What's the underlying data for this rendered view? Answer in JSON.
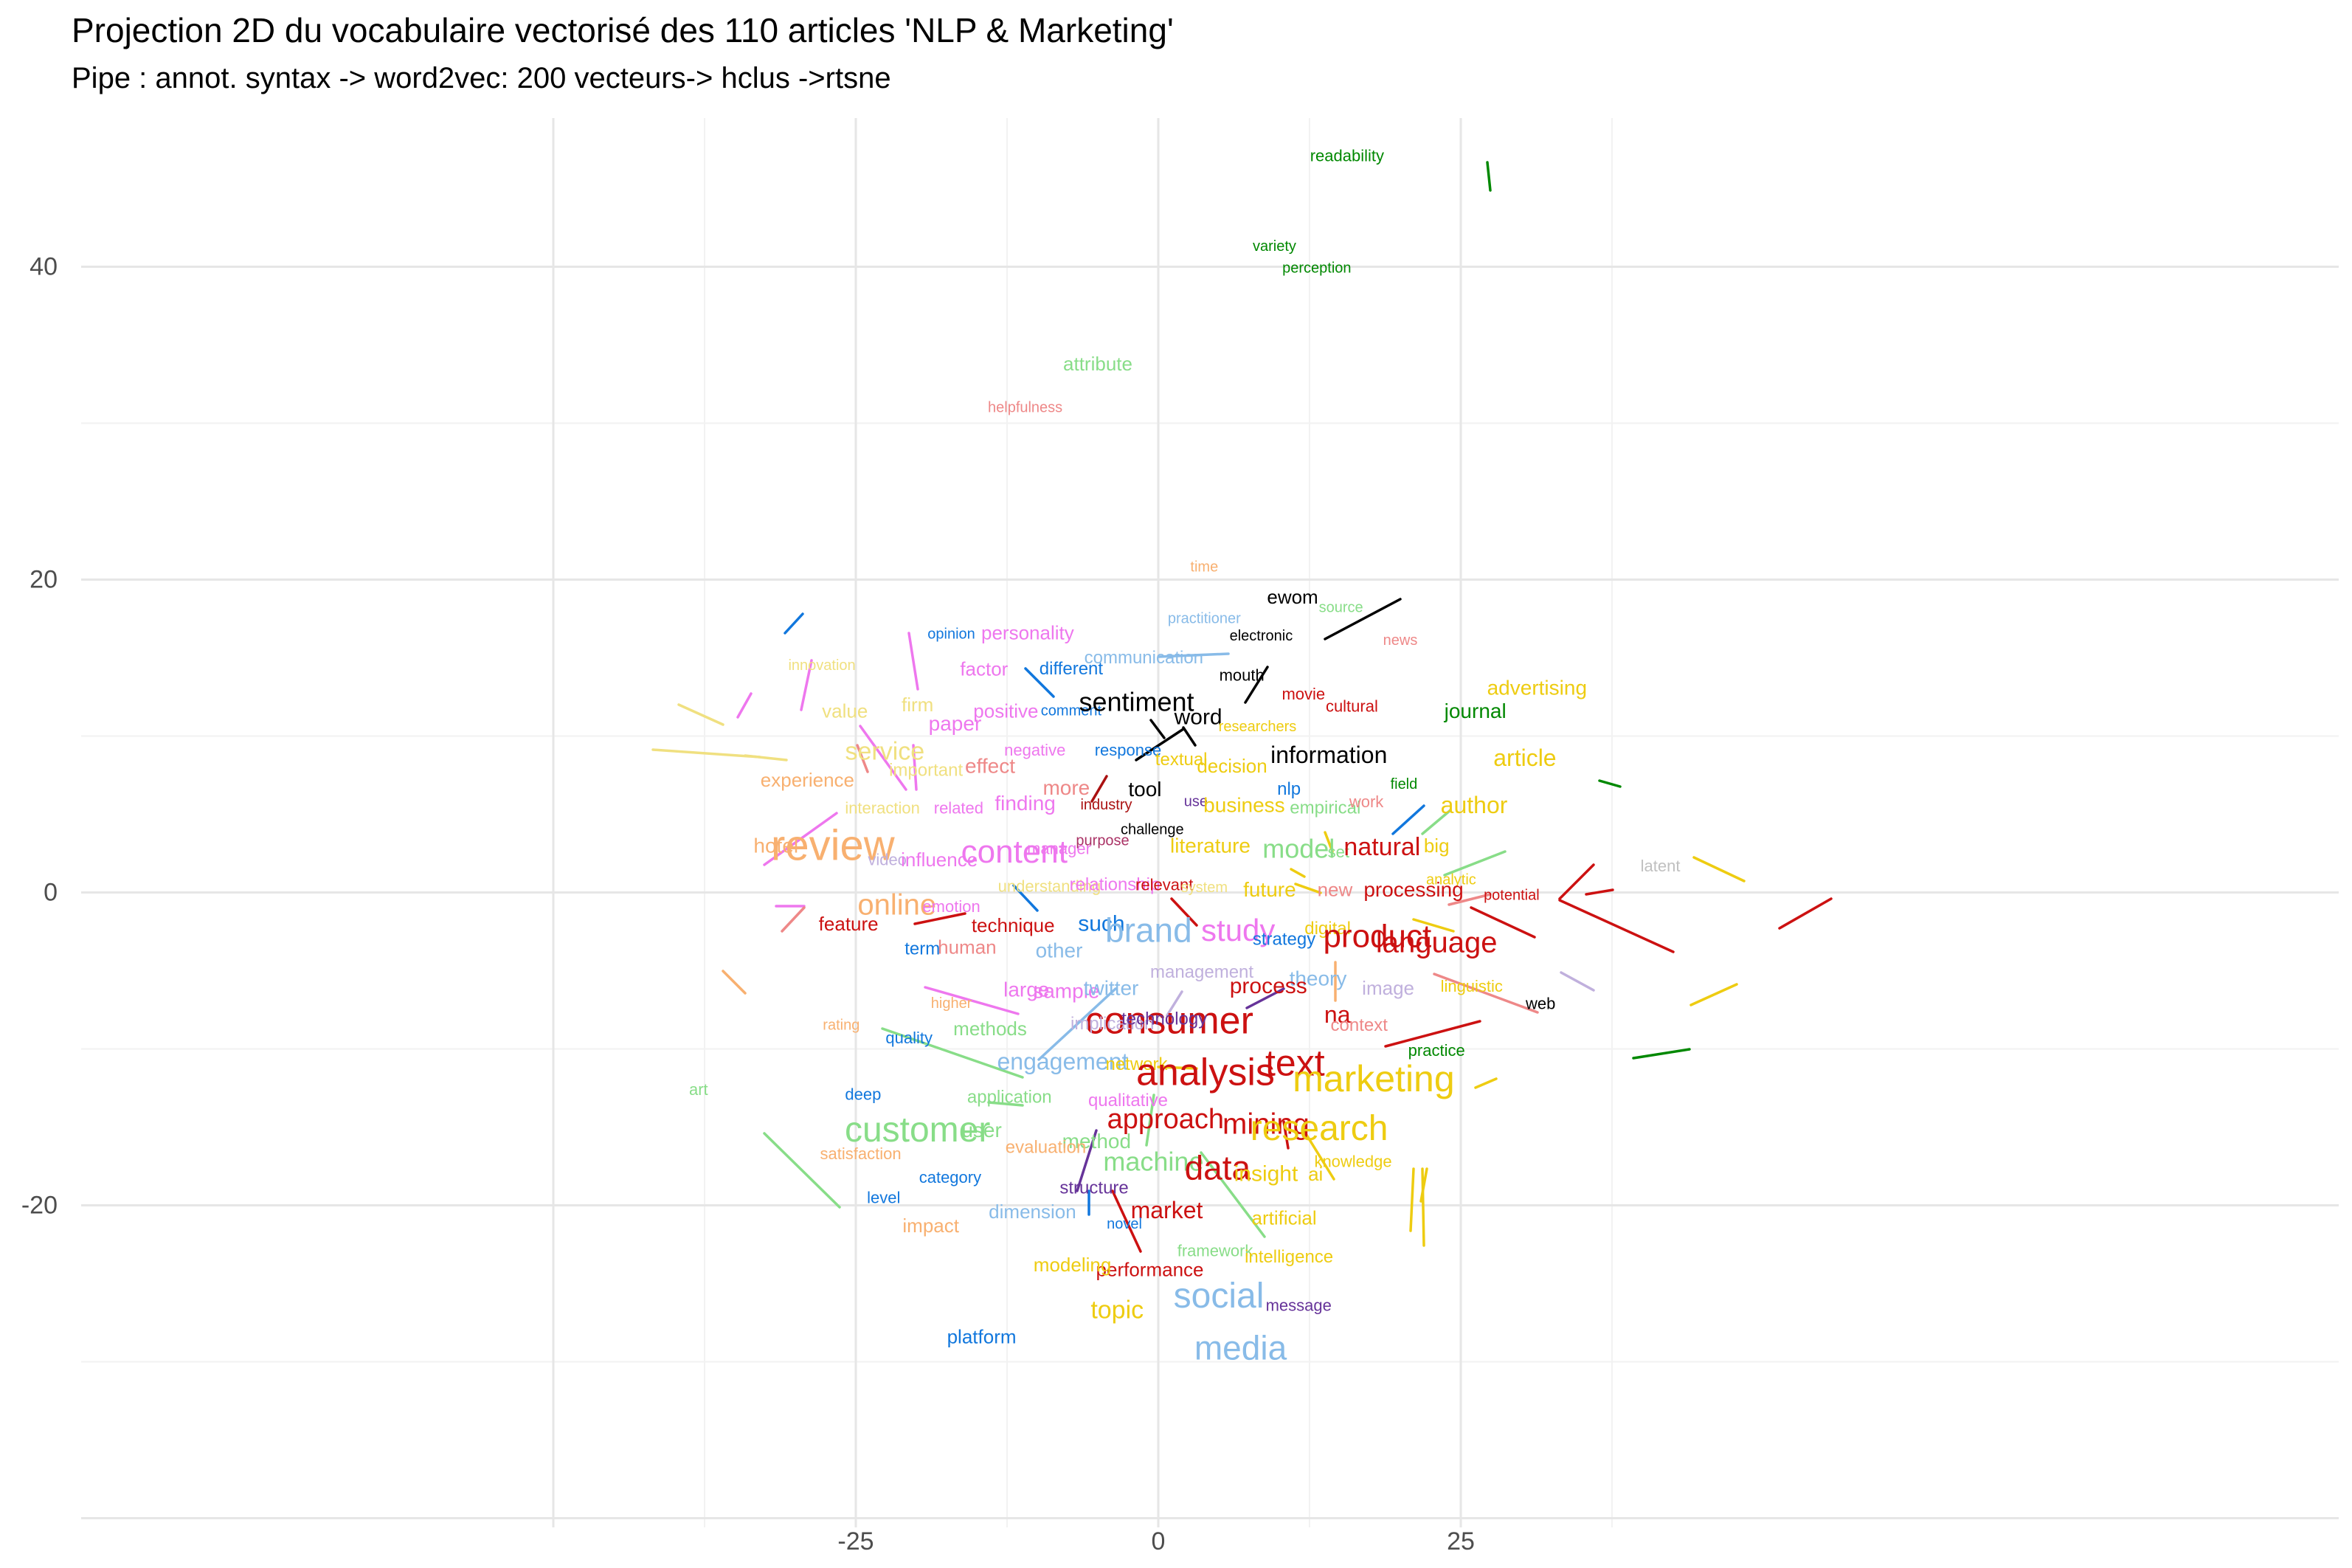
{
  "chart_data": {
    "type": "scatter",
    "title": "Projection 2D du vocabulaire vectorisé des 110 articles 'NLP & Marketing'",
    "subtitle": "Pipe : annot. syntax -> word2vec: 200 vecteurs-> hclus ->rtsne",
    "xlabel": "",
    "ylabel": "",
    "xlim": [
      -37.5,
      48
    ],
    "ylim": [
      -40.5,
      50.5
    ],
    "x_ticks": [
      -25,
      0,
      25
    ],
    "x_tick_labels": [
      "-25",
      "0",
      "25"
    ],
    "y_ticks": [
      -20,
      0,
      20,
      40
    ],
    "y_tick_labels": [
      "-20",
      "0",
      "20",
      "40"
    ],
    "grid": true,
    "legend": "none",
    "words": [
      {
        "label": "readability",
        "x": 15.6,
        "y": 47.1,
        "color": "#008800",
        "size": 22
      },
      {
        "label": "variety",
        "x": 9.6,
        "y": 41.3,
        "color": "#008800",
        "size": 20
      },
      {
        "label": "perception",
        "x": 13.1,
        "y": 39.9,
        "color": "#008800",
        "size": 20
      },
      {
        "label": "attribute",
        "x": -5.0,
        "y": 33.8,
        "color": "#88dd88",
        "size": 26
      },
      {
        "label": "helpfulness",
        "x": -11.0,
        "y": 31.0,
        "color": "#ee8888",
        "size": 20
      },
      {
        "label": "time",
        "x": 3.8,
        "y": 20.8,
        "color": "#f8b070",
        "size": 20
      },
      {
        "label": "ewom",
        "x": 11.1,
        "y": 18.9,
        "color": "#000000",
        "size": 26
      },
      {
        "label": "source",
        "x": 15.1,
        "y": 18.2,
        "color": "#88dd88",
        "size": 20
      },
      {
        "label": "practitioner",
        "x": 3.8,
        "y": 17.5,
        "color": "#88bbe8",
        "size": 20
      },
      {
        "label": "electronic",
        "x": 8.5,
        "y": 16.4,
        "color": "#000000",
        "size": 20
      },
      {
        "label": "opinion",
        "x": -17.1,
        "y": 16.5,
        "color": "#1177dd",
        "size": 20
      },
      {
        "label": "personality",
        "x": -10.8,
        "y": 16.6,
        "color": "#ee77ee",
        "size": 26
      },
      {
        "label": "news",
        "x": 20.0,
        "y": 16.1,
        "color": "#ee8888",
        "size": 20
      },
      {
        "label": "innovation",
        "x": -27.8,
        "y": 14.5,
        "color": "#f0e080",
        "size": 20
      },
      {
        "label": "factor",
        "x": -14.4,
        "y": 14.3,
        "color": "#ee77ee",
        "size": 26
      },
      {
        "label": "different",
        "x": -7.2,
        "y": 14.3,
        "color": "#1177dd",
        "size": 24
      },
      {
        "label": "communication",
        "x": -1.2,
        "y": 15.0,
        "color": "#88bbe8",
        "size": 24
      },
      {
        "label": "mouth",
        "x": 6.9,
        "y": 13.9,
        "color": "#000000",
        "size": 22
      },
      {
        "label": "movie",
        "x": 12.0,
        "y": 12.7,
        "color": "#cc1111",
        "size": 22
      },
      {
        "label": "cultural",
        "x": 16.0,
        "y": 11.9,
        "color": "#cc1111",
        "size": 22
      },
      {
        "label": "value",
        "x": -25.9,
        "y": 11.6,
        "color": "#f0e080",
        "size": 26
      },
      {
        "label": "firm",
        "x": -19.9,
        "y": 12.0,
        "color": "#f0e080",
        "size": 26
      },
      {
        "label": "positive",
        "x": -12.6,
        "y": 11.6,
        "color": "#ee77ee",
        "size": 26
      },
      {
        "label": "comment",
        "x": -7.2,
        "y": 11.6,
        "color": "#1177dd",
        "size": 20
      },
      {
        "label": "sentiment",
        "x": -1.8,
        "y": 12.2,
        "color": "#000000",
        "size": 36
      },
      {
        "label": "word",
        "x": 3.3,
        "y": 11.2,
        "color": "#000000",
        "size": 30
      },
      {
        "label": "journal",
        "x": 26.2,
        "y": 11.6,
        "color": "#008800",
        "size": 28
      },
      {
        "label": "advertising",
        "x": 31.3,
        "y": 13.1,
        "color": "#eecc11",
        "size": 28
      },
      {
        "label": "paper",
        "x": -16.8,
        "y": 10.8,
        "color": "#ee77ee",
        "size": 28
      },
      {
        "label": "researchers",
        "x": 8.2,
        "y": 10.6,
        "color": "#eecc11",
        "size": 20
      },
      {
        "label": "service",
        "x": -22.6,
        "y": 9.0,
        "color": "#f0e080",
        "size": 34
      },
      {
        "label": "negative",
        "x": -10.2,
        "y": 9.1,
        "color": "#ee77ee",
        "size": 22
      },
      {
        "label": "response",
        "x": -2.5,
        "y": 9.1,
        "color": "#1177dd",
        "size": 22
      },
      {
        "label": "information",
        "x": 14.1,
        "y": 8.8,
        "color": "#000000",
        "size": 32
      },
      {
        "label": "article",
        "x": 30.3,
        "y": 8.6,
        "color": "#eecc11",
        "size": 32
      },
      {
        "label": "important",
        "x": -19.2,
        "y": 7.8,
        "color": "#f0e080",
        "size": 24
      },
      {
        "label": "effect",
        "x": -13.9,
        "y": 8.1,
        "color": "#ee8888",
        "size": 28
      },
      {
        "label": "textual",
        "x": 1.9,
        "y": 8.5,
        "color": "#eecc11",
        "size": 24
      },
      {
        "label": "decision",
        "x": 6.1,
        "y": 8.1,
        "color": "#eecc11",
        "size": 26
      },
      {
        "label": "field",
        "x": 20.3,
        "y": 6.9,
        "color": "#008800",
        "size": 20
      },
      {
        "label": "experience",
        "x": -29.0,
        "y": 7.2,
        "color": "#f8b070",
        "size": 26
      },
      {
        "label": "more",
        "x": -7.6,
        "y": 6.7,
        "color": "#ee8888",
        "size": 28
      },
      {
        "label": "tool",
        "x": -1.1,
        "y": 6.6,
        "color": "#000000",
        "size": 28
      },
      {
        "label": "use",
        "x": 3.1,
        "y": 5.8,
        "color": "#663399",
        "size": 20
      },
      {
        "label": "nlp",
        "x": 10.8,
        "y": 6.6,
        "color": "#1177dd",
        "size": 24
      },
      {
        "label": "industry",
        "x": -4.3,
        "y": 5.6,
        "color": "#aa1111",
        "size": 20
      },
      {
        "label": "finding",
        "x": -11.0,
        "y": 5.7,
        "color": "#ee77ee",
        "size": 28
      },
      {
        "label": "interaction",
        "x": -22.8,
        "y": 5.4,
        "color": "#f0e080",
        "size": 22
      },
      {
        "label": "related",
        "x": -16.5,
        "y": 5.4,
        "color": "#ee77ee",
        "size": 22
      },
      {
        "label": "business",
        "x": 7.1,
        "y": 5.6,
        "color": "#eecc11",
        "size": 28
      },
      {
        "label": "empirical",
        "x": 13.8,
        "y": 5.4,
        "color": "#88dd88",
        "size": 24
      },
      {
        "label": "work",
        "x": 17.2,
        "y": 5.8,
        "color": "#ee8888",
        "size": 22
      },
      {
        "label": "author",
        "x": 26.1,
        "y": 5.6,
        "color": "#eecc11",
        "size": 32
      },
      {
        "label": "challenge",
        "x": -0.5,
        "y": 4.0,
        "color": "#000000",
        "size": 20
      },
      {
        "label": "hotel",
        "x": -31.6,
        "y": 3.0,
        "color": "#f8b070",
        "size": 28
      },
      {
        "label": "review",
        "x": -26.9,
        "y": 3.0,
        "color": "#f8b070",
        "size": 58
      },
      {
        "label": "content",
        "x": -11.9,
        "y": 2.6,
        "color": "#ee77ee",
        "size": 44
      },
      {
        "label": "manager",
        "x": -8.2,
        "y": 2.8,
        "color": "#ee77ee",
        "size": 22
      },
      {
        "label": "purpose",
        "x": -4.6,
        "y": 3.3,
        "color": "#aa3366",
        "size": 20
      },
      {
        "label": "literature",
        "x": 4.3,
        "y": 3.0,
        "color": "#eecc11",
        "size": 28
      },
      {
        "label": "model",
        "x": 11.6,
        "y": 2.8,
        "color": "#88dd88",
        "size": 36
      },
      {
        "label": "set",
        "x": 14.9,
        "y": 2.6,
        "color": "#88dd88",
        "size": 22
      },
      {
        "label": "natural",
        "x": 18.5,
        "y": 2.9,
        "color": "#cc1111",
        "size": 34
      },
      {
        "label": "big",
        "x": 23.0,
        "y": 3.0,
        "color": "#eecc11",
        "size": 26
      },
      {
        "label": "video",
        "x": -22.4,
        "y": 2.1,
        "color": "#c0b0dd",
        "size": 22
      },
      {
        "label": "influence",
        "x": -18.1,
        "y": 2.1,
        "color": "#ee77ee",
        "size": 26
      },
      {
        "label": "latent",
        "x": 41.5,
        "y": 1.7,
        "color": "#c0c0c0",
        "size": 22
      },
      {
        "label": "analytic",
        "x": 24.2,
        "y": 0.8,
        "color": "#eecc11",
        "size": 20
      },
      {
        "label": "understanding",
        "x": -9.0,
        "y": 0.4,
        "color": "#f0e080",
        "size": 22
      },
      {
        "label": "relationship",
        "x": -3.6,
        "y": 0.5,
        "color": "#ee77ee",
        "size": 24
      },
      {
        "label": "relevant",
        "x": 0.5,
        "y": 0.5,
        "color": "#cc1111",
        "size": 22
      },
      {
        "label": "system",
        "x": 3.8,
        "y": 0.3,
        "color": "#f0e080",
        "size": 20
      },
      {
        "label": "future",
        "x": 9.2,
        "y": 0.2,
        "color": "#eecc11",
        "size": 28
      },
      {
        "label": "new",
        "x": 14.6,
        "y": 0.2,
        "color": "#ee8888",
        "size": 26
      },
      {
        "label": "processing",
        "x": 21.1,
        "y": 0.2,
        "color": "#cc1111",
        "size": 28
      },
      {
        "label": "potential",
        "x": 29.2,
        "y": -0.2,
        "color": "#cc1111",
        "size": 20
      },
      {
        "label": "online",
        "x": -21.6,
        "y": -0.8,
        "color": "#f8b070",
        "size": 40
      },
      {
        "label": "emotion",
        "x": -17.1,
        "y": -0.9,
        "color": "#ee77ee",
        "size": 22
      },
      {
        "label": "feature",
        "x": -25.6,
        "y": -2.0,
        "color": "#cc1111",
        "size": 26
      },
      {
        "label": "technique",
        "x": -12.0,
        "y": -2.1,
        "color": "#cc1111",
        "size": 26
      },
      {
        "label": "such",
        "x": -4.7,
        "y": -2.0,
        "color": "#1177dd",
        "size": 30
      },
      {
        "label": "brand",
        "x": -0.8,
        "y": -2.4,
        "color": "#88bbe8",
        "size": 46
      },
      {
        "label": "study",
        "x": 6.6,
        "y": -2.4,
        "color": "#ee77ee",
        "size": 42
      },
      {
        "label": "digital",
        "x": 14.0,
        "y": -2.3,
        "color": "#eecc11",
        "size": 24
      },
      {
        "label": "product",
        "x": 18.1,
        "y": -2.8,
        "color": "#cc1111",
        "size": 44
      },
      {
        "label": "language",
        "x": 23.0,
        "y": -3.2,
        "color": "#cc1111",
        "size": 40
      },
      {
        "label": "strategy",
        "x": 10.4,
        "y": -3.0,
        "color": "#1177dd",
        "size": 24
      },
      {
        "label": "term",
        "x": -19.5,
        "y": -3.6,
        "color": "#1177dd",
        "size": 24
      },
      {
        "label": "human",
        "x": -15.8,
        "y": -3.5,
        "color": "#ee8888",
        "size": 26
      },
      {
        "label": "other",
        "x": -8.2,
        "y": -3.7,
        "color": "#88bbe8",
        "size": 28
      },
      {
        "label": "management",
        "x": 3.6,
        "y": -5.1,
        "color": "#c0b0dd",
        "size": 24
      },
      {
        "label": "theory",
        "x": 13.2,
        "y": -5.5,
        "color": "#88bbe8",
        "size": 28
      },
      {
        "label": "process",
        "x": 9.1,
        "y": -6.0,
        "color": "#cc1111",
        "size": 30
      },
      {
        "label": "image",
        "x": 19.0,
        "y": -6.1,
        "color": "#c0b0dd",
        "size": 26
      },
      {
        "label": "linguistic",
        "x": 25.9,
        "y": -6.0,
        "color": "#eecc11",
        "size": 22
      },
      {
        "label": "large",
        "x": -10.9,
        "y": -6.2,
        "color": "#ee77ee",
        "size": 28
      },
      {
        "label": "sample",
        "x": -7.6,
        "y": -6.3,
        "color": "#ee77ee",
        "size": 28
      },
      {
        "label": "twitter",
        "x": -3.9,
        "y": -6.1,
        "color": "#88bbe8",
        "size": 28
      },
      {
        "label": "higher",
        "x": -17.1,
        "y": -7.1,
        "color": "#f8b070",
        "size": 20
      },
      {
        "label": "web",
        "x": 31.6,
        "y": -7.1,
        "color": "#000000",
        "size": 22
      },
      {
        "label": "na",
        "x": 14.8,
        "y": -7.8,
        "color": "#cc1111",
        "size": 32
      },
      {
        "label": "consumer",
        "x": 0.9,
        "y": -8.2,
        "color": "#cc1111",
        "size": 52
      },
      {
        "label": "rating",
        "x": -26.2,
        "y": -8.5,
        "color": "#f8b070",
        "size": 20
      },
      {
        "label": "methods",
        "x": -13.9,
        "y": -8.7,
        "color": "#88dd88",
        "size": 26
      },
      {
        "label": "implication",
        "x": -3.8,
        "y": -8.4,
        "color": "#c0b0dd",
        "size": 24
      },
      {
        "label": "technology",
        "x": 0.5,
        "y": -8.1,
        "color": "#663399",
        "size": 24
      },
      {
        "label": "context",
        "x": 16.6,
        "y": -8.5,
        "color": "#ee8888",
        "size": 24
      },
      {
        "label": "quality",
        "x": -20.6,
        "y": -9.3,
        "color": "#1177dd",
        "size": 22
      },
      {
        "label": "practice",
        "x": 23.0,
        "y": -10.1,
        "color": "#008800",
        "size": 22
      },
      {
        "label": "engagement",
        "x": -7.9,
        "y": -10.8,
        "color": "#88bbe8",
        "size": 32
      },
      {
        "label": "network",
        "x": -1.8,
        "y": -11.0,
        "color": "#eecc11",
        "size": 24
      },
      {
        "label": "analysis",
        "x": 3.9,
        "y": -11.5,
        "color": "#cc1111",
        "size": 52
      },
      {
        "label": "text",
        "x": 11.3,
        "y": -10.9,
        "color": "#cc1111",
        "size": 50
      },
      {
        "label": "marketing",
        "x": 17.8,
        "y": -11.9,
        "color": "#eecc11",
        "size": 50
      },
      {
        "label": "application",
        "x": -12.3,
        "y": -13.1,
        "color": "#88dd88",
        "size": 24
      },
      {
        "label": "qualitative",
        "x": -2.5,
        "y": -13.3,
        "color": "#ee77ee",
        "size": 24
      },
      {
        "label": "deep",
        "x": -24.4,
        "y": -12.9,
        "color": "#1177dd",
        "size": 22
      },
      {
        "label": "art",
        "x": -38.0,
        "y": -12.6,
        "color": "#88dd88",
        "size": 22
      },
      {
        "label": "approach",
        "x": 0.6,
        "y": -14.5,
        "color": "#cc1111",
        "size": 38
      },
      {
        "label": "mining",
        "x": 8.9,
        "y": -14.8,
        "color": "#cc1111",
        "size": 40
      },
      {
        "label": "research",
        "x": 13.3,
        "y": -15.1,
        "color": "#eecc11",
        "size": 48
      },
      {
        "label": "customer",
        "x": -19.9,
        "y": -15.2,
        "color": "#88dd88",
        "size": 48
      },
      {
        "label": "user",
        "x": -14.6,
        "y": -15.2,
        "color": "#88dd88",
        "size": 28
      },
      {
        "label": "method",
        "x": -5.1,
        "y": -15.9,
        "color": "#88dd88",
        "size": 28
      },
      {
        "label": "evaluation",
        "x": -9.3,
        "y": -16.3,
        "color": "#f8b070",
        "size": 24
      },
      {
        "label": "satisfaction",
        "x": -24.6,
        "y": -16.7,
        "color": "#f8b070",
        "size": 22
      },
      {
        "label": "machine",
        "x": -0.4,
        "y": -17.2,
        "color": "#88dd88",
        "size": 36
      },
      {
        "label": "data",
        "x": 4.9,
        "y": -17.6,
        "color": "#cc1111",
        "size": 46
      },
      {
        "label": "insight",
        "x": 8.9,
        "y": -18.0,
        "color": "#eecc11",
        "size": 30
      },
      {
        "label": "ai",
        "x": 13.0,
        "y": -18.0,
        "color": "#eecc11",
        "size": 26
      },
      {
        "label": "knowledge",
        "x": 16.1,
        "y": -17.2,
        "color": "#eecc11",
        "size": 22
      },
      {
        "label": "category",
        "x": -17.2,
        "y": -18.2,
        "color": "#1177dd",
        "size": 22
      },
      {
        "label": "structure",
        "x": -5.3,
        "y": -18.9,
        "color": "#663399",
        "size": 24
      },
      {
        "label": "level",
        "x": -22.7,
        "y": -19.5,
        "color": "#1177dd",
        "size": 22
      },
      {
        "label": "dimension",
        "x": -10.4,
        "y": -20.4,
        "color": "#88bbe8",
        "size": 26
      },
      {
        "label": "market",
        "x": 0.7,
        "y": -20.3,
        "color": "#cc1111",
        "size": 32
      },
      {
        "label": "artificial",
        "x": 10.4,
        "y": -20.8,
        "color": "#eecc11",
        "size": 26
      },
      {
        "label": "impact",
        "x": -18.8,
        "y": -21.3,
        "color": "#f8b070",
        "size": 26
      },
      {
        "label": "novel",
        "x": -2.8,
        "y": -21.2,
        "color": "#1177dd",
        "size": 20
      },
      {
        "label": "framework",
        "x": 4.7,
        "y": -22.9,
        "color": "#88dd88",
        "size": 22
      },
      {
        "label": "intelligence",
        "x": 10.8,
        "y": -23.3,
        "color": "#eecc11",
        "size": 24
      },
      {
        "label": "performance",
        "x": -0.7,
        "y": -24.1,
        "color": "#cc1111",
        "size": 26
      },
      {
        "label": "modeling",
        "x": -7.1,
        "y": -23.8,
        "color": "#eecc11",
        "size": 26
      },
      {
        "label": "social",
        "x": 5.0,
        "y": -25.8,
        "color": "#88bbe8",
        "size": 48
      },
      {
        "label": "message",
        "x": 11.6,
        "y": -26.4,
        "color": "#663399",
        "size": 22
      },
      {
        "label": "topic",
        "x": -3.4,
        "y": -26.7,
        "color": "#eecc11",
        "size": 34
      },
      {
        "label": "platform",
        "x": -14.6,
        "y": -28.4,
        "color": "#1177dd",
        "size": 26
      },
      {
        "label": "media",
        "x": 6.8,
        "y": -29.1,
        "color": "#88bbe8",
        "size": 46
      }
    ]
  }
}
